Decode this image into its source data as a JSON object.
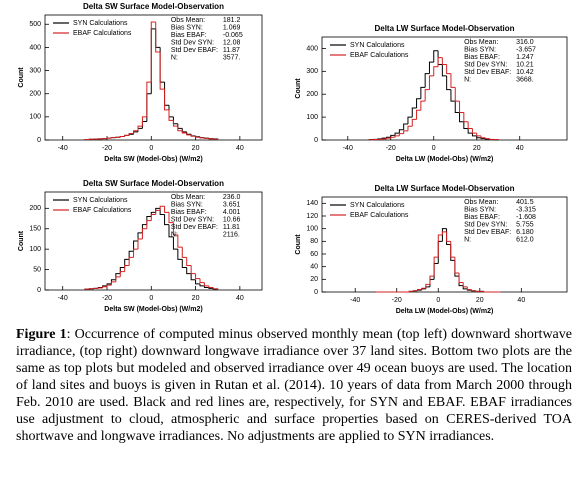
{
  "chart_data": [
    {
      "type": "histogram",
      "title": "Delta SW Surface Model-Observation",
      "xlabel": "Delta SW (Model-Obs) (W/m2)",
      "ylabel": "Count",
      "bins": [
        -30,
        -28,
        -26,
        -24,
        -22,
        -20,
        -18,
        -16,
        -14,
        -12,
        -10,
        -8,
        -6,
        -4,
        -2,
        0,
        2,
        4,
        6,
        8,
        10,
        12,
        14,
        16,
        18,
        20,
        22,
        24,
        26,
        28,
        30
      ],
      "series": [
        {
          "name": "SYN Calculations",
          "color": "#000000",
          "values": [
            2,
            3,
            4,
            5,
            6,
            8,
            10,
            12,
            15,
            20,
            25,
            35,
            50,
            80,
            200,
            480,
            400,
            250,
            150,
            100,
            70,
            50,
            35,
            25,
            18,
            14,
            10,
            8,
            6,
            5
          ]
        },
        {
          "name": "EBAF Calculations",
          "color": "#d62020",
          "values": [
            2,
            3,
            4,
            5,
            6,
            8,
            10,
            12,
            15,
            20,
            28,
            40,
            60,
            100,
            250,
            510,
            380,
            220,
            130,
            85,
            60,
            40,
            30,
            22,
            16,
            12,
            9,
            7,
            5,
            4
          ]
        }
      ],
      "xlim": [
        -48,
        50
      ],
      "ylim": [
        0,
        540
      ],
      "xticks": [
        -40,
        -20,
        0,
        20,
        40
      ],
      "yticks": [
        0,
        100,
        200,
        300,
        400,
        500
      ],
      "stats": [
        [
          "Obs Mean:",
          "181.2"
        ],
        [
          "Bias SYN:",
          "1.069"
        ],
        [
          "Bias EBAF:",
          "-0.065"
        ],
        [
          "Std Dev SYN:",
          "12.08"
        ],
        [
          "Std Dev EBAF:",
          "11.87"
        ],
        [
          "N:",
          "3577."
        ]
      ]
    },
    {
      "type": "histogram",
      "title": "Delta LW Surface Model-Observation",
      "xlabel": "Delta LW (Model-Obs) (W/m2)",
      "ylabel": "Count",
      "bins": [
        -30,
        -28,
        -26,
        -24,
        -22,
        -20,
        -18,
        -16,
        -14,
        -12,
        -10,
        -8,
        -6,
        -4,
        -2,
        0,
        2,
        4,
        6,
        8,
        10,
        12,
        14,
        16,
        18,
        20,
        22,
        24,
        26,
        28,
        30
      ],
      "series": [
        {
          "name": "SYN Calculations",
          "color": "#000000",
          "values": [
            2,
            3,
            5,
            8,
            12,
            20,
            30,
            45,
            70,
            100,
            140,
            180,
            230,
            290,
            340,
            390,
            330,
            280,
            220,
            170,
            120,
            80,
            50,
            30,
            18,
            10,
            6,
            4,
            2,
            1
          ]
        },
        {
          "name": "EBAF Calculations",
          "color": "#d62020",
          "values": [
            1,
            2,
            3,
            5,
            8,
            12,
            18,
            28,
            40,
            60,
            90,
            130,
            170,
            220,
            280,
            320,
            360,
            330,
            290,
            230,
            170,
            120,
            80,
            50,
            30,
            18,
            10,
            6,
            3,
            2
          ]
        }
      ],
      "xlim": [
        -52,
        62
      ],
      "ylim": [
        0,
        450
      ],
      "xticks": [
        -40,
        -20,
        0,
        20,
        40
      ],
      "yticks": [
        0,
        100,
        200,
        300,
        400
      ],
      "stats": [
        [
          "Obs Mean:",
          "316.0"
        ],
        [
          "Bias SYN:",
          "-3.657"
        ],
        [
          "Bias EBAF:",
          "1.247"
        ],
        [
          "Std Dev SYN:",
          "10.21"
        ],
        [
          "Std Dev EBAF:",
          "10.42"
        ],
        [
          "N:",
          "3668."
        ]
      ]
    },
    {
      "type": "histogram",
      "title": "Delta SW Surface Model-Observation",
      "xlabel": "Delta SW (Model-Obs) (W/m2)",
      "ylabel": "Count",
      "bins": [
        -30,
        -28,
        -26,
        -24,
        -22,
        -20,
        -18,
        -16,
        -14,
        -12,
        -10,
        -8,
        -6,
        -4,
        -2,
        0,
        2,
        4,
        6,
        8,
        10,
        12,
        14,
        16,
        18,
        20,
        22,
        24,
        26,
        28,
        30
      ],
      "series": [
        {
          "name": "SYN Calculations",
          "color": "#000000",
          "values": [
            2,
            3,
            4,
            6,
            10,
            15,
            25,
            40,
            55,
            75,
            95,
            120,
            140,
            160,
            180,
            190,
            200,
            185,
            160,
            130,
            100,
            75,
            55,
            40,
            25,
            15,
            10,
            6,
            4,
            2
          ]
        },
        {
          "name": "EBAF Calculations",
          "color": "#d62020",
          "values": [
            2,
            3,
            4,
            5,
            8,
            12,
            20,
            32,
            45,
            60,
            80,
            100,
            125,
            150,
            170,
            185,
            195,
            205,
            190,
            165,
            135,
            105,
            80,
            60,
            40,
            28,
            18,
            10,
            6,
            3
          ]
        }
      ],
      "xlim": [
        -48,
        50
      ],
      "ylim": [
        0,
        240
      ],
      "xticks": [
        -40,
        -20,
        0,
        20,
        40
      ],
      "yticks": [
        0,
        50,
        100,
        150,
        200
      ],
      "stats": [
        [
          "Obs Mean:",
          "236.0"
        ],
        [
          "Bias SYN:",
          "3.651"
        ],
        [
          "Bias EBAF:",
          "4.001"
        ],
        [
          "Std Dev SYN:",
          "10.66"
        ],
        [
          "Std Dev EBAF:",
          "11.81"
        ],
        [
          "N:",
          "2116."
        ]
      ]
    },
    {
      "type": "histogram",
      "title": "Delta LW Surface Model-Observation",
      "xlabel": "Delta LW (Model-Obs) (W/m2)",
      "ylabel": "Count",
      "bins": [
        -30,
        -28,
        -26,
        -24,
        -22,
        -20,
        -18,
        -16,
        -14,
        -12,
        -10,
        -8,
        -6,
        -4,
        -2,
        0,
        2,
        4,
        6,
        8,
        10,
        12,
        14,
        16,
        18,
        20,
        22,
        24,
        26,
        28,
        30
      ],
      "series": [
        {
          "name": "SYN Calculations",
          "color": "#000000",
          "values": [
            0,
            0,
            0,
            0,
            0,
            0,
            0,
            0,
            1,
            2,
            3,
            5,
            8,
            20,
            45,
            80,
            100,
            75,
            50,
            25,
            10,
            5,
            3,
            2,
            1,
            1,
            0,
            0,
            0,
            0
          ]
        },
        {
          "name": "EBAF Calculations",
          "color": "#d62020",
          "values": [
            0,
            0,
            0,
            0,
            0,
            0,
            0,
            0,
            1,
            2,
            4,
            6,
            12,
            25,
            55,
            90,
            95,
            80,
            55,
            30,
            15,
            8,
            4,
            2,
            1,
            1,
            0,
            0,
            0,
            0
          ]
        }
      ],
      "xlim": [
        -56,
        62
      ],
      "ylim": [
        0,
        150
      ],
      "xticks": [
        -40,
        -20,
        0,
        20,
        40
      ],
      "yticks": [
        0,
        20,
        40,
        60,
        80,
        100,
        120,
        140
      ],
      "stats": [
        [
          "Obs Mean:",
          "401.5"
        ],
        [
          "Bias SYN:",
          "-3.315"
        ],
        [
          "Bias EBAF:",
          "-1.608"
        ],
        [
          "Std Dev SYN:",
          "5.755"
        ],
        [
          "Std Dev EBAF:",
          "6.180"
        ],
        [
          "N:",
          "612.0"
        ]
      ]
    }
  ],
  "caption": {
    "label": "Figure 1",
    "text": ": Occurrence of computed minus observed monthly mean (top left) downward shortwave irradiance, (top right) downward longwave irradiance over 37 land sites. Bottom two plots are the same as top plots but modeled and observed irradiance over 49 ocean buoys are used. The location of land sites and buoys is given in Rutan et al. (2014). 10 years of data from March 2000 through Feb. 2010 are used. Black and red lines are, respectively, for SYN and EBAF. EBAF irradiances use adjustment to cloud, atmospheric and surface properties based on CERES-derived TOA shortwave and longwave irradiances. No adjustments are applied to SYN irradiances."
  }
}
